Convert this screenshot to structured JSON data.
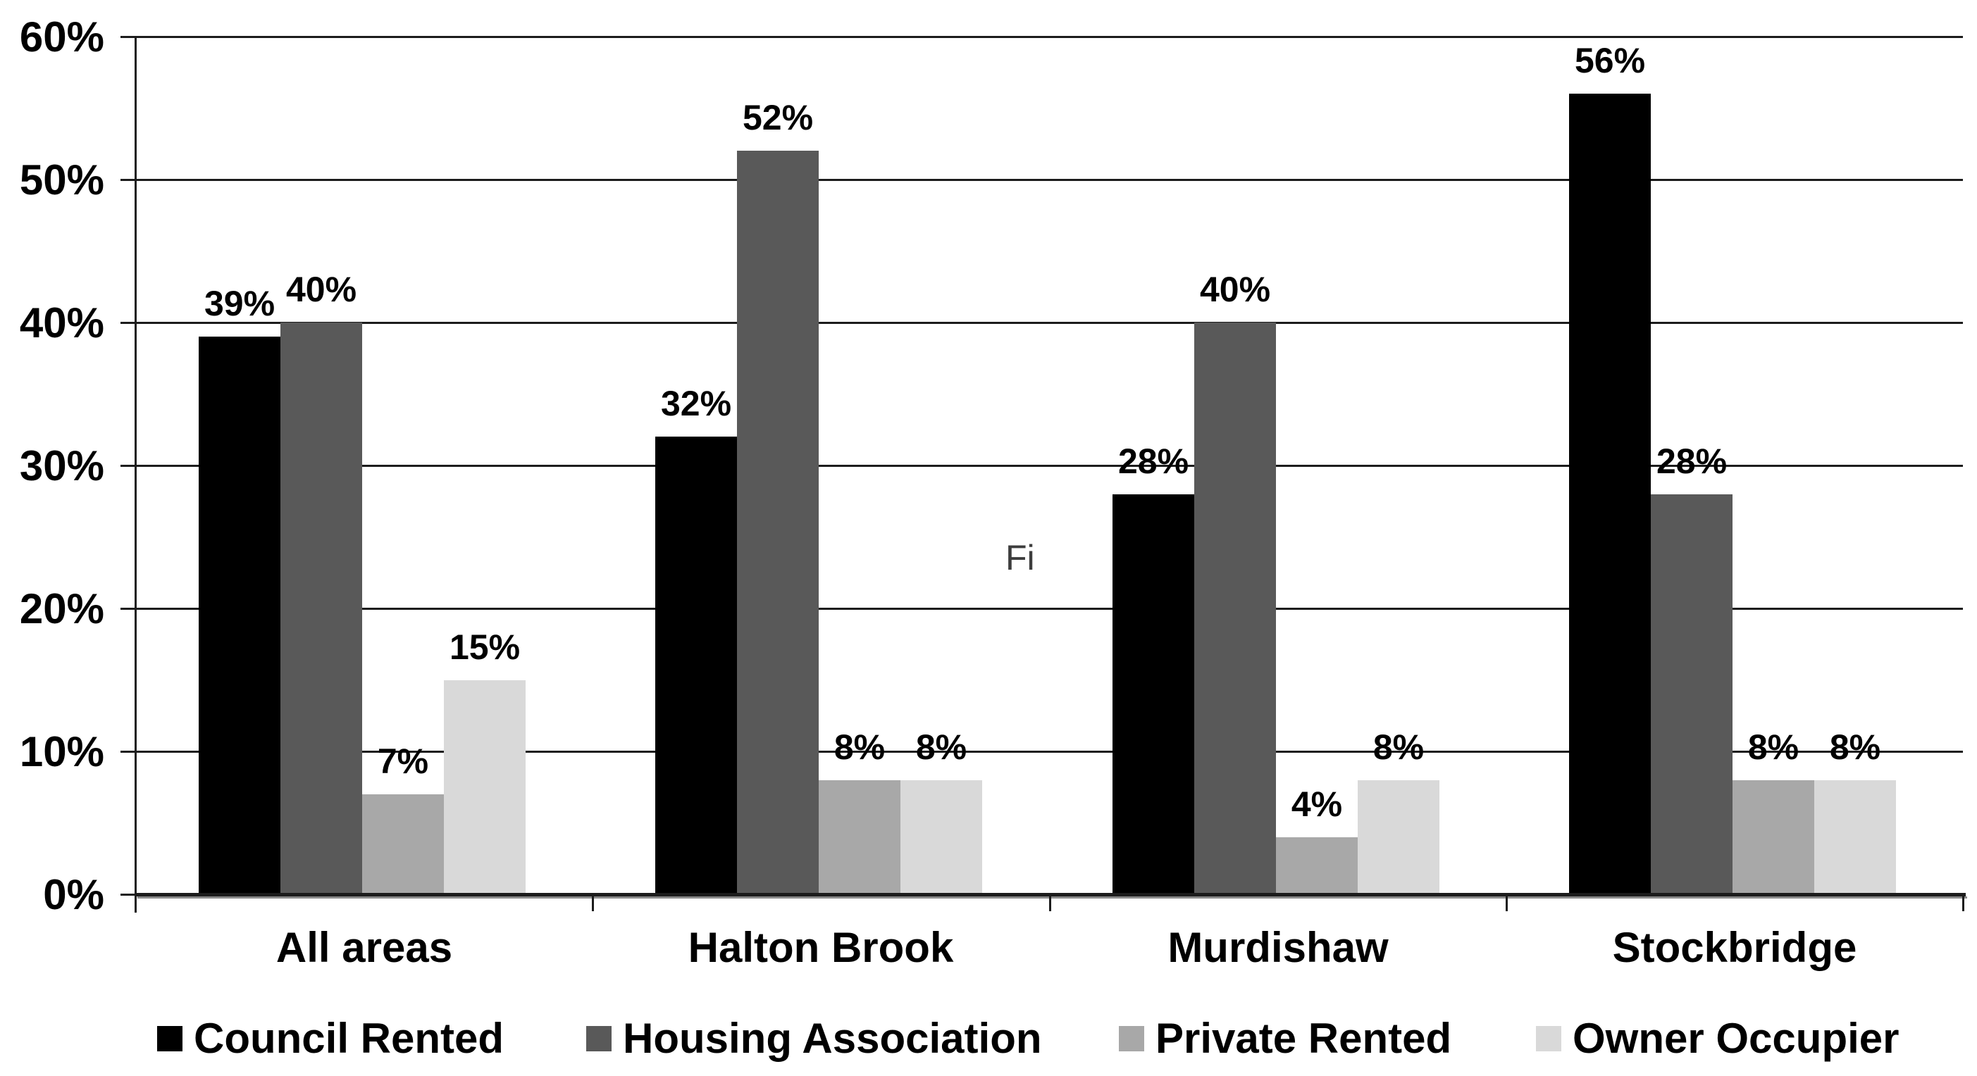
{
  "page": {
    "background": "#ffffff"
  },
  "stray_text": {
    "text": "Fi"
  },
  "chart_data": {
    "type": "bar",
    "title": "",
    "xlabel": "",
    "ylabel": "",
    "categories": [
      "All areas",
      "Halton Brook",
      "Murdishaw",
      "Stockbridge"
    ],
    "series": [
      {
        "name": "Council Rented",
        "color": "#000000",
        "values": [
          39,
          32,
          28,
          56
        ],
        "labels": [
          "39%",
          "32%",
          "28%",
          "56%"
        ]
      },
      {
        "name": "Housing Association",
        "color": "#595959",
        "values": [
          40,
          52,
          40,
          28
        ],
        "labels": [
          "40%",
          "52%",
          "40%",
          "28%"
        ]
      },
      {
        "name": "Private Rented",
        "color": "#a8a8a8",
        "values": [
          7,
          8,
          4,
          8
        ],
        "labels": [
          "7%",
          "8%",
          "4%",
          "8%"
        ]
      },
      {
        "name": "Owner Occupier",
        "color": "#d9d9d9",
        "values": [
          15,
          8,
          8,
          8
        ],
        "labels": [
          "15%",
          "8%",
          "8%",
          "8%"
        ]
      }
    ],
    "ylim": [
      0,
      60
    ],
    "ytick_step": 10,
    "yticks": [
      {
        "value": 0,
        "label": "0%"
      },
      {
        "value": 10,
        "label": "10%"
      },
      {
        "value": 20,
        "label": "20%"
      },
      {
        "value": 30,
        "label": "30%"
      },
      {
        "value": 40,
        "label": "40%"
      },
      {
        "value": 50,
        "label": "50%"
      },
      {
        "value": 60,
        "label": "60%"
      }
    ],
    "grid": true,
    "legend_position": "bottom",
    "data_labels": "outside-end",
    "colors": {
      "axis": "#1c1c1c",
      "gridline": "#1c1c1c",
      "baseline_shadow": "#8c8c8c",
      "text": "#000000"
    }
  }
}
